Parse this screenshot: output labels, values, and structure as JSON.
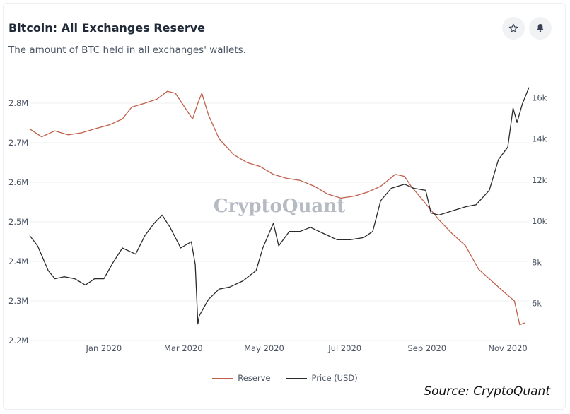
{
  "header": {
    "title": "Bitcoin: All Exchanges Reserve",
    "subtitle": "The amount of BTC held in all exchanges' wallets."
  },
  "toolbar": {
    "star_icon": "star-icon",
    "bell_icon": "bell-icon"
  },
  "watermark": "CryptoQuant",
  "source_note": "Source: CryptoQuant",
  "colors": {
    "reserve": "#c0604a",
    "price": "#2b2b2b",
    "grid": "#eef0f2",
    "axis_text": "#4b5563"
  },
  "chart_data": {
    "type": "line",
    "title": "Bitcoin: All Exchanges Reserve",
    "x_ticks": [
      "Jan 2020",
      "Mar 2020",
      "May 2020",
      "Jul 2020",
      "Sep 2020",
      "Nov 2020"
    ],
    "x_range": [
      "2019-11-06",
      "2020-11-17"
    ],
    "y_left": {
      "ticks": [
        "2.2M",
        "2.3M",
        "2.4M",
        "2.5M",
        "2.6M",
        "2.7M",
        "2.8M"
      ],
      "range": [
        2200000,
        2850000
      ]
    },
    "y_right": {
      "ticks": [
        "6k",
        "8k",
        "10k",
        "12k",
        "14k",
        "16k"
      ],
      "range": [
        4200,
        16700
      ]
    },
    "legend": "bottom-center",
    "grid": "horizontal",
    "series": [
      {
        "name": "Reserve",
        "axis": "left",
        "x": [
          "2019-11-06",
          "2019-11-15",
          "2019-11-25",
          "2019-12-05",
          "2019-12-15",
          "2019-12-25",
          "2020-01-05",
          "2020-01-15",
          "2020-01-22",
          "2020-02-01",
          "2020-02-10",
          "2020-02-18",
          "2020-02-24",
          "2020-03-02",
          "2020-03-08",
          "2020-03-12",
          "2020-03-15",
          "2020-03-20",
          "2020-03-28",
          "2020-04-08",
          "2020-04-18",
          "2020-04-28",
          "2020-05-08",
          "2020-05-18",
          "2020-05-28",
          "2020-06-08",
          "2020-06-18",
          "2020-06-28",
          "2020-07-08",
          "2020-07-18",
          "2020-07-28",
          "2020-08-08",
          "2020-08-15",
          "2020-08-20",
          "2020-08-30",
          "2020-09-10",
          "2020-09-20",
          "2020-09-30",
          "2020-10-10",
          "2020-10-20",
          "2020-10-30",
          "2020-11-06",
          "2020-11-10",
          "2020-11-14"
        ],
        "values": [
          2735000,
          2715000,
          2730000,
          2720000,
          2725000,
          2735000,
          2745000,
          2760000,
          2790000,
          2800000,
          2810000,
          2830000,
          2825000,
          2790000,
          2760000,
          2800000,
          2825000,
          2770000,
          2710000,
          2670000,
          2650000,
          2640000,
          2620000,
          2610000,
          2605000,
          2590000,
          2570000,
          2560000,
          2565000,
          2575000,
          2590000,
          2620000,
          2615000,
          2590000,
          2550000,
          2505000,
          2470000,
          2440000,
          2380000,
          2350000,
          2320000,
          2300000,
          2240000,
          2245000
        ]
      },
      {
        "name": "Price (USD)",
        "axis": "right",
        "x": [
          "2019-11-06",
          "2019-11-12",
          "2019-11-20",
          "2019-11-25",
          "2019-12-02",
          "2019-12-10",
          "2019-12-18",
          "2019-12-25",
          "2020-01-01",
          "2020-01-08",
          "2020-01-15",
          "2020-01-25",
          "2020-02-01",
          "2020-02-08",
          "2020-02-14",
          "2020-02-20",
          "2020-02-28",
          "2020-03-07",
          "2020-03-10",
          "2020-03-12",
          "2020-03-13",
          "2020-03-20",
          "2020-03-28",
          "2020-04-05",
          "2020-04-15",
          "2020-04-25",
          "2020-04-30",
          "2020-05-08",
          "2020-05-12",
          "2020-05-20",
          "2020-05-28",
          "2020-06-05",
          "2020-06-15",
          "2020-06-25",
          "2020-07-05",
          "2020-07-15",
          "2020-07-22",
          "2020-07-28",
          "2020-08-05",
          "2020-08-15",
          "2020-08-22",
          "2020-08-31",
          "2020-09-04",
          "2020-09-10",
          "2020-09-20",
          "2020-09-30",
          "2020-10-08",
          "2020-10-18",
          "2020-10-25",
          "2020-11-01",
          "2020-11-05",
          "2020-11-08",
          "2020-11-12",
          "2020-11-17"
        ],
        "values": [
          9300,
          8800,
          7600,
          7200,
          7300,
          7200,
          6900,
          7200,
          7200,
          8000,
          8700,
          8400,
          9300,
          9900,
          10300,
          9700,
          8700,
          9000,
          7900,
          5000,
          5400,
          6200,
          6700,
          6800,
          7100,
          7600,
          8700,
          9900,
          8800,
          9500,
          9500,
          9700,
          9400,
          9100,
          9100,
          9200,
          9500,
          11000,
          11600,
          11800,
          11600,
          11500,
          10400,
          10300,
          10500,
          10700,
          10800,
          11500,
          13000,
          13600,
          15500,
          14800,
          15700,
          16500
        ]
      }
    ]
  }
}
